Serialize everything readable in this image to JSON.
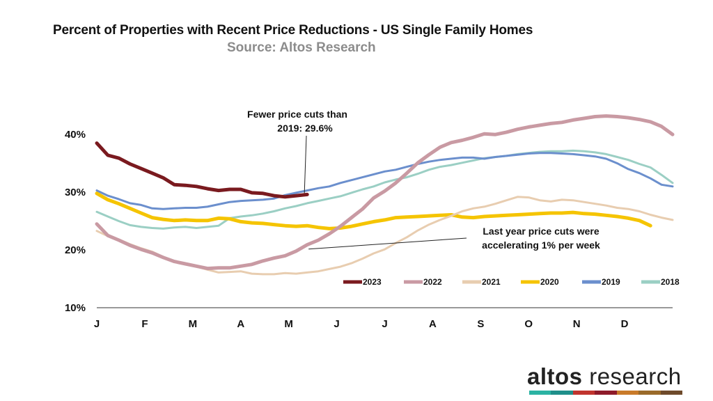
{
  "header": {
    "title": "Percent of Properties with Recent Price Reductions - US Single Family Homes",
    "subtitle": "Source: Altos Research"
  },
  "brand": {
    "logo_part1": "altos",
    "logo_part2": " research",
    "bar_colors": [
      "#2bb3a3",
      "#1f8f8a",
      "#c0342e",
      "#8e1b2a",
      "#c97b2a",
      "#9a6a2a",
      "#6e4a2b"
    ]
  },
  "chart_data": {
    "type": "line",
    "x_labels": [
      "J",
      "F",
      "M",
      "A",
      "M",
      "J",
      "J",
      "A",
      "S",
      "O",
      "N",
      "D"
    ],
    "y_ticks": [
      "10%",
      "20%",
      "30%",
      "40%"
    ],
    "ylim": [
      10,
      44
    ],
    "x_range": [
      1,
      53
    ],
    "series": [
      {
        "name": "2023",
        "color": "#7a1a1f",
        "width": 5,
        "weeks": [
          1,
          2,
          3,
          4,
          5,
          6,
          7,
          8,
          9,
          10,
          11,
          12,
          13,
          14,
          15,
          16,
          17,
          18,
          19,
          20
        ],
        "values": [
          38.5,
          36.4,
          35.9,
          34.9,
          34.1,
          33.3,
          32.5,
          31.3,
          31.2,
          31.0,
          30.6,
          30.3,
          30.5,
          30.5,
          29.9,
          29.8,
          29.4,
          29.2,
          29.4,
          29.6
        ]
      },
      {
        "name": "2022",
        "color": "#c99aa3",
        "width": 5,
        "values": [
          24.5,
          22.5,
          21.7,
          20.8,
          20.1,
          19.5,
          18.7,
          18.0,
          17.6,
          17.2,
          16.8,
          16.9,
          16.9,
          17.2,
          17.5,
          18.1,
          18.6,
          19.0,
          19.8,
          20.9,
          21.7,
          22.8,
          24.1,
          25.6,
          27.1,
          29.0,
          30.2,
          31.6,
          33.3,
          35.1,
          36.5,
          37.8,
          38.6,
          39.0,
          39.5,
          40.1,
          40.0,
          40.4,
          40.9,
          41.3,
          41.6,
          41.9,
          42.1,
          42.5,
          42.8,
          43.1,
          43.2,
          43.1,
          42.9,
          42.6,
          42.2,
          41.4,
          40.0
        ]
      },
      {
        "name": "2021",
        "color": "#e8cdb0",
        "width": 3,
        "values": [
          23.3,
          22.4,
          21.8,
          21.0,
          20.3,
          19.7,
          18.8,
          17.9,
          17.6,
          17.1,
          16.6,
          16.1,
          16.2,
          16.3,
          15.9,
          15.8,
          15.8,
          16.0,
          15.9,
          16.1,
          16.3,
          16.7,
          17.1,
          17.7,
          18.5,
          19.4,
          20.1,
          21.2,
          22.2,
          23.4,
          24.4,
          25.2,
          25.9,
          26.7,
          27.2,
          27.5,
          28.0,
          28.6,
          29.2,
          29.1,
          28.6,
          28.4,
          28.7,
          28.6,
          28.3,
          28.0,
          27.7,
          27.3,
          27.1,
          26.7,
          26.1,
          25.6,
          25.2
        ]
      },
      {
        "name": "2020",
        "color": "#f5c400",
        "width": 5,
        "values": [
          29.8,
          28.7,
          28.0,
          27.2,
          26.4,
          25.6,
          25.3,
          25.1,
          25.2,
          25.1,
          25.1,
          25.5,
          25.4,
          24.9,
          24.7,
          24.6,
          24.4,
          24.2,
          24.1,
          24.2,
          23.9,
          23.7,
          23.8,
          24.1,
          24.5,
          24.9,
          25.2,
          25.6,
          25.7,
          25.8,
          25.9,
          26.0,
          26.1,
          25.7,
          25.6,
          25.8,
          25.9,
          26.0,
          26.1,
          26.2,
          26.3,
          26.4,
          26.4,
          26.5,
          26.3,
          26.2,
          26.0,
          25.8,
          25.5,
          25.1,
          24.2
        ]
      },
      {
        "name": "2019",
        "color": "#6b8fcd",
        "width": 3,
        "values": [
          30.3,
          29.4,
          28.8,
          28.1,
          27.8,
          27.2,
          27.1,
          27.2,
          27.3,
          27.3,
          27.5,
          27.9,
          28.3,
          28.5,
          28.6,
          28.7,
          28.9,
          29.5,
          29.9,
          30.3,
          30.7,
          31.0,
          31.6,
          32.1,
          32.6,
          33.1,
          33.6,
          33.9,
          34.4,
          34.9,
          35.3,
          35.6,
          35.8,
          36.0,
          36.0,
          35.8,
          36.1,
          36.3,
          36.5,
          36.7,
          36.8,
          36.8,
          36.7,
          36.6,
          36.4,
          36.2,
          35.8,
          35.0,
          34.0,
          33.3,
          32.4,
          31.3,
          31.0
        ]
      },
      {
        "name": "2018",
        "color": "#9bcfc4",
        "width": 3,
        "values": [
          26.6,
          25.8,
          25.0,
          24.3,
          24.0,
          23.8,
          23.7,
          23.9,
          24.0,
          23.8,
          24.0,
          24.2,
          25.5,
          25.8,
          26.0,
          26.3,
          26.7,
          27.2,
          27.6,
          28.1,
          28.5,
          28.9,
          29.3,
          29.9,
          30.5,
          31.0,
          31.7,
          32.2,
          32.6,
          33.2,
          33.9,
          34.4,
          34.7,
          35.1,
          35.5,
          35.9,
          36.1,
          36.3,
          36.6,
          36.8,
          37.0,
          37.1,
          37.1,
          37.2,
          37.1,
          36.9,
          36.6,
          36.1,
          35.6,
          34.9,
          34.3,
          33.0,
          31.6
        ]
      }
    ],
    "legend_position": "bottom-right",
    "annotations": [
      {
        "lines": [
          "Fewer price cuts than",
          "2019: 29.6%"
        ],
        "target_week": 20,
        "target_value": 29.6
      },
      {
        "lines": [
          "Last year price cuts were",
          "accelerating 1% per week"
        ],
        "target_week": 20,
        "target_value": 21.0
      }
    ]
  }
}
